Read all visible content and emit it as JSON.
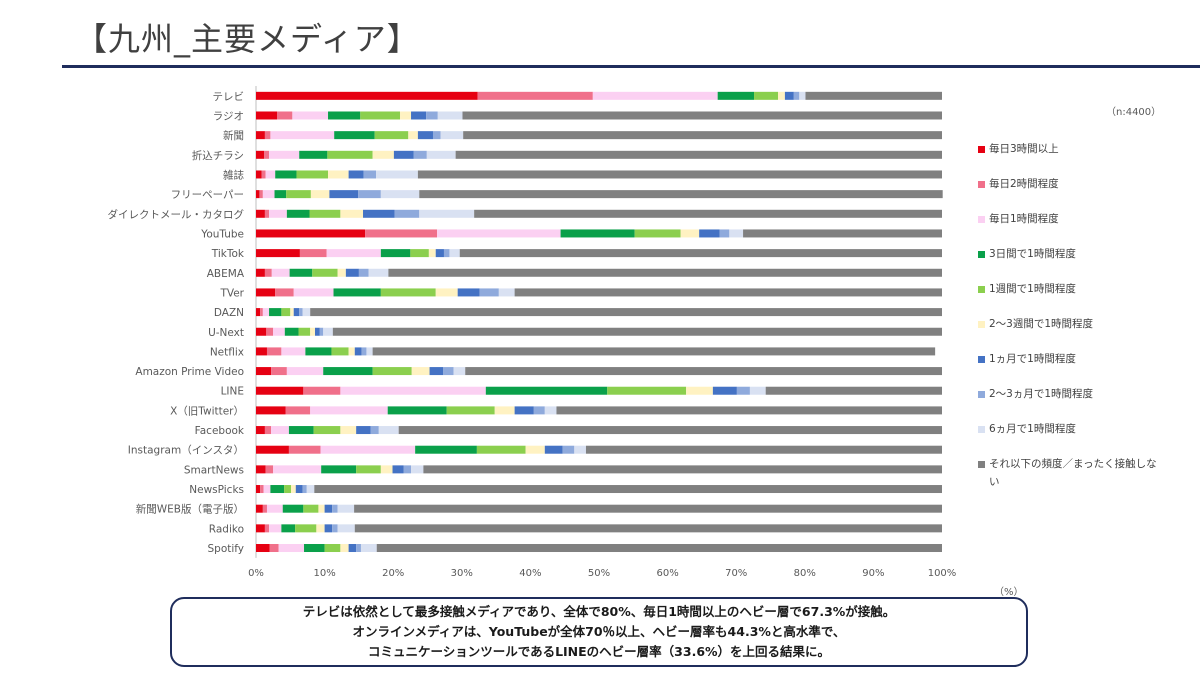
{
  "page": {
    "title": "【九州_主要メディア】",
    "sample_note": "（n:4400）",
    "unit_note": "（%）",
    "summary_lines": [
      "テレビは依然として最多接触メディアであり、全体で80%、毎日1時間以上のヘビー層で67.3%が接触。",
      "オンラインメディアは、YouTubeが全体70％以上、ヘビー層率も44.3%と高水準で、",
      "コミュニケーションツールであるLINEのヘビー層率（33.6%）を上回る結果に。"
    ]
  },
  "chart_data": {
    "type": "bar",
    "orientation": "horizontal",
    "stacked": "percent",
    "categories": [
      "テレビ",
      "ラジオ",
      "新聞",
      "折込チラシ",
      "雑誌",
      "フリーペーパー",
      "ダイレクトメール・カタログ",
      "YouTube",
      "TikTok",
      "ABEMA",
      "TVer",
      "DAZN",
      "U-Next",
      "Netflix",
      "Amazon Prime Video",
      "LINE",
      "X（旧Twitter）",
      "Facebook",
      "Instagram（インスタ）",
      "SmartNews",
      "NewsPicks",
      "新聞WEB版（電子版）",
      "Radiko",
      "Spotify"
    ],
    "xlim": [
      0,
      100
    ],
    "xticks": [
      "0%",
      "10%",
      "20%",
      "30%",
      "40%",
      "50%",
      "60%",
      "70%",
      "80%",
      "90%",
      "100%"
    ],
    "grid": false,
    "legend_position": "right",
    "series": [
      {
        "name": "毎日3時間以上",
        "color": "#e60012",
        "values": [
          32.3,
          3.1,
          1.3,
          1.2,
          0.8,
          0.5,
          1.3,
          15.9,
          6.4,
          1.3,
          2.8,
          0.6,
          1.5,
          1.6,
          2.2,
          6.9,
          4.3,
          1.3,
          4.8,
          1.4,
          0.6,
          1.0,
          1.3,
          2.0
        ]
      },
      {
        "name": "毎日2時間程度",
        "color": "#f0708a",
        "values": [
          16.8,
          2.2,
          0.8,
          0.7,
          0.6,
          0.5,
          0.6,
          10.5,
          3.9,
          1.0,
          2.7,
          0.4,
          1.0,
          2.1,
          2.3,
          5.4,
          3.6,
          0.9,
          4.6,
          1.1,
          0.5,
          0.6,
          0.6,
          1.3
        ]
      },
      {
        "name": "毎日1時間程度",
        "color": "#fbd0f2",
        "values": [
          18.2,
          5.2,
          9.3,
          4.4,
          1.4,
          1.7,
          2.6,
          18.0,
          7.9,
          2.6,
          5.8,
          0.9,
          1.7,
          3.5,
          5.3,
          21.2,
          11.3,
          2.6,
          13.8,
          7.0,
          1.0,
          2.3,
          1.8,
          3.7
        ]
      },
      {
        "name": "3日間で1時間程度",
        "color": "#0aa04a",
        "values": [
          5.3,
          4.7,
          5.9,
          4.1,
          3.1,
          1.7,
          3.3,
          10.8,
          4.3,
          3.3,
          6.9,
          1.8,
          2.0,
          3.8,
          7.2,
          17.7,
          8.6,
          3.6,
          9.0,
          5.1,
          2.0,
          3.0,
          2.0,
          3.0
        ]
      },
      {
        "name": "1週間で1時間程度",
        "color": "#8bcf4e",
        "values": [
          3.5,
          5.8,
          4.9,
          6.6,
          4.6,
          3.6,
          4.5,
          6.7,
          2.7,
          3.7,
          8.0,
          1.3,
          1.7,
          2.5,
          5.7,
          11.5,
          7.0,
          3.9,
          7.1,
          3.6,
          1.0,
          2.2,
          3.1,
          2.3
        ]
      },
      {
        "name": "2〜3週間で1時間程度",
        "color": "#fff2c2",
        "values": [
          1.0,
          1.6,
          1.4,
          3.1,
          3.0,
          2.7,
          3.3,
          2.7,
          1.0,
          1.2,
          3.2,
          0.5,
          0.7,
          0.9,
          2.6,
          3.9,
          2.9,
          2.3,
          2.8,
          1.7,
          0.7,
          0.9,
          1.2,
          1.2
        ]
      },
      {
        "name": "1ヵ月で1時間程度",
        "color": "#4472c4",
        "values": [
          1.3,
          2.2,
          2.2,
          2.9,
          2.2,
          4.2,
          4.6,
          3.0,
          1.2,
          1.9,
          3.2,
          0.8,
          0.7,
          1.0,
          2.0,
          3.5,
          2.8,
          2.1,
          2.6,
          1.6,
          1.0,
          1.1,
          1.1,
          1.1
        ]
      },
      {
        "name": "2〜3ヵ月で1時間程度",
        "color": "#8faadc",
        "values": [
          0.8,
          1.7,
          1.1,
          1.9,
          1.8,
          3.3,
          3.6,
          1.4,
          0.8,
          1.4,
          2.8,
          0.5,
          0.5,
          0.7,
          1.5,
          1.9,
          1.6,
          1.2,
          1.7,
          1.1,
          0.6,
          0.8,
          0.8,
          0.7
        ]
      },
      {
        "name": "6ヵ月で1時間程度",
        "color": "#d9e1f2",
        "values": [
          0.9,
          3.6,
          3.3,
          4.2,
          6.1,
          5.6,
          8.0,
          2.0,
          1.5,
          2.9,
          2.3,
          1.1,
          1.4,
          0.9,
          1.7,
          2.3,
          1.7,
          2.9,
          1.7,
          1.8,
          1.1,
          2.4,
          2.5,
          2.3
        ]
      },
      {
        "name": "それ以下の頻度／まったく接触しない",
        "color": "#808080",
        "values": [
          19.9,
          69.9,
          69.8,
          70.9,
          76.4,
          76.3,
          68.2,
          29.0,
          70.3,
          80.7,
          62.3,
          92.1,
          88.8,
          82.0,
          69.5,
          25.7,
          56.2,
          79.2,
          51.9,
          75.6,
          91.5,
          85.7,
          85.6,
          82.4
        ]
      }
    ]
  }
}
